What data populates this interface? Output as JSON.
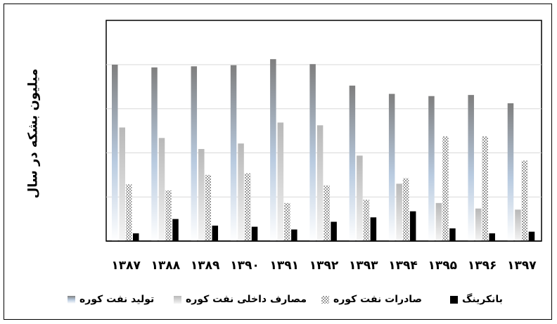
{
  "chart_data": {
    "type": "bar",
    "ylabel": "میلیون بشکه در سال",
    "categories": [
      "۱۳۸۷",
      "۱۳۸۸",
      "۱۳۸۹",
      "۱۳۹۰",
      "۱۳۹۱",
      "۱۳۹۲",
      "۱۳۹۳",
      "۱۳۹۴",
      "۱۳۹۵",
      "۱۳۹۶",
      "۱۳۹۷"
    ],
    "ylim": [
      0,
      1600
    ],
    "grid": true,
    "legend_position": "bottom",
    "series": [
      {
        "name": "تولید  نفت کوره",
        "style": "gradient-blue",
        "values": [
          1600,
          1575,
          1585,
          1595,
          1650,
          1605,
          1410,
          1335,
          1315,
          1325,
          1250
        ]
      },
      {
        "name": "مصارف داخلی نفت کوره",
        "style": "gradient-gray",
        "values": [
          1030,
          935,
          835,
          885,
          1075,
          1050,
          775,
          520,
          345,
          295,
          285
        ]
      },
      {
        "name": "صادرات نفت کوره",
        "style": "checker",
        "values": [
          515,
          460,
          600,
          615,
          345,
          505,
          375,
          570,
          950,
          950,
          730
        ]
      },
      {
        "name": "بانکرینگ",
        "style": "black",
        "values": [
          70,
          200,
          140,
          130,
          105,
          175,
          215,
          270,
          115,
          70,
          85
        ]
      }
    ],
    "colors": {
      "black": "#000000",
      "gray": "#c8c8c8",
      "blue": "#8a8a8a"
    }
  }
}
